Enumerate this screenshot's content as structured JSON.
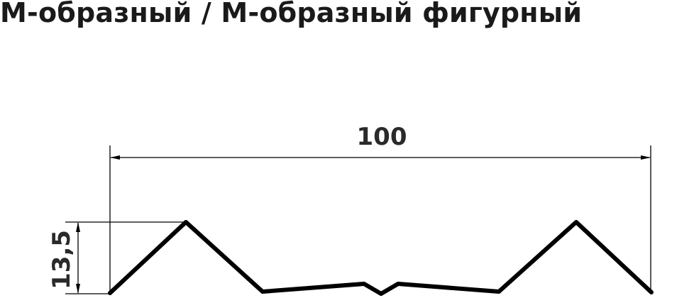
{
  "title": "М-образный / М-образный фигурный",
  "dimensions": {
    "width_label": "100",
    "height_label": "13,5"
  },
  "colors": {
    "line": "#000000",
    "text": "#1a1a1a"
  }
}
